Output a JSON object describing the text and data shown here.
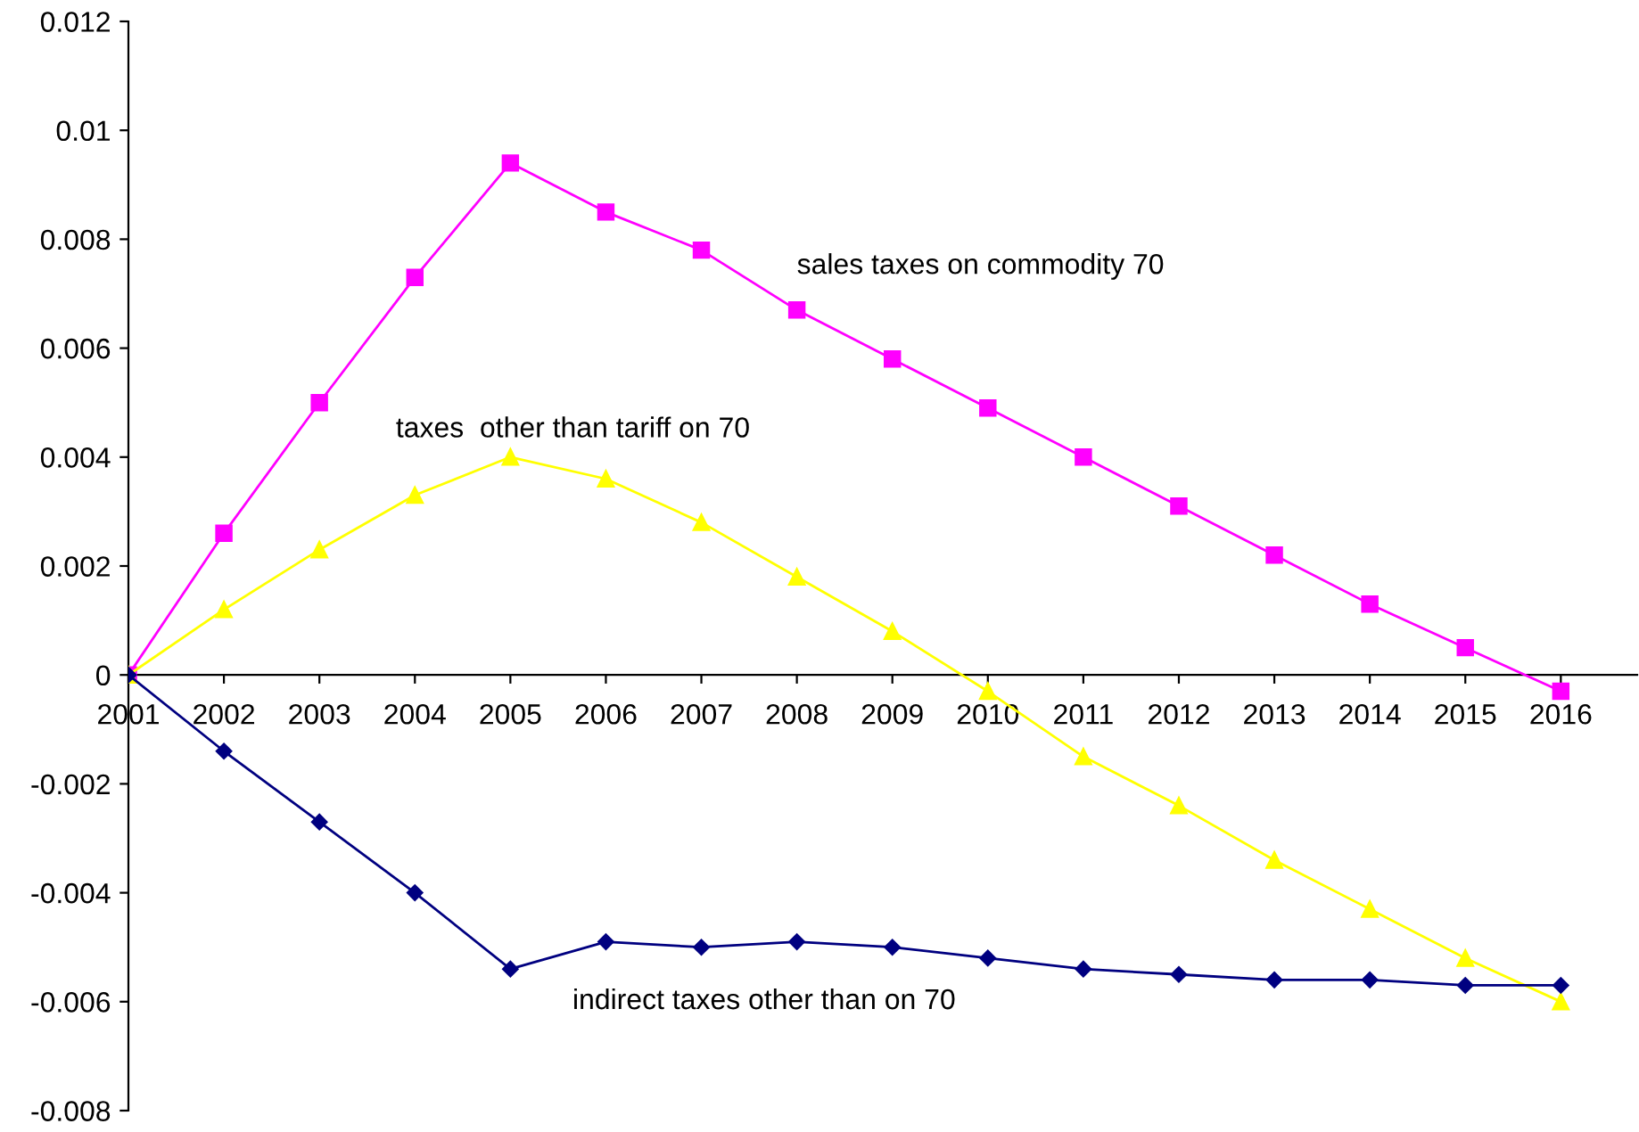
{
  "chart_data": {
    "type": "line",
    "categories": [
      "2001",
      "2002",
      "2003",
      "2004",
      "2005",
      "2006",
      "2007",
      "2008",
      "2009",
      "2010",
      "2011",
      "2012",
      "2013",
      "2014",
      "2015",
      "2016"
    ],
    "series": [
      {
        "name": "sales taxes on commodity 70",
        "color": "#ff00ff",
        "marker": "square",
        "values": [
          0,
          0.0026,
          0.005,
          0.0073,
          0.0094,
          0.0085,
          0.0078,
          0.0067,
          0.0058,
          0.0049,
          0.004,
          0.0031,
          0.0022,
          0.0013,
          0.0005,
          -0.0003
        ]
      },
      {
        "name": "taxes  other than tariff on 70",
        "color": "#ffff00",
        "marker": "triangle",
        "values": [
          0,
          0.0012,
          0.0023,
          0.0033,
          0.004,
          0.0036,
          0.0028,
          0.0018,
          0.0008,
          -0.0003,
          -0.0015,
          -0.0024,
          -0.0034,
          -0.0043,
          -0.0052,
          -0.006
        ]
      },
      {
        "name": "indirect taxes other than on 70",
        "color": "#000080",
        "marker": "diamond",
        "values": [
          0,
          -0.0014,
          -0.0027,
          -0.004,
          -0.0054,
          -0.0049,
          -0.005,
          -0.0049,
          -0.005,
          -0.0052,
          -0.0054,
          -0.0055,
          -0.0056,
          -0.0056,
          -0.0057,
          -0.0057
        ]
      }
    ],
    "ylim": [
      -0.008,
      0.012
    ],
    "yticks": [
      {
        "value": -0.008,
        "label": "-0.008"
      },
      {
        "value": -0.006,
        "label": "-0.006"
      },
      {
        "value": -0.004,
        "label": "-0.004"
      },
      {
        "value": -0.002,
        "label": "-0.002"
      },
      {
        "value": 0,
        "label": "0"
      },
      {
        "value": 0.002,
        "label": "0.002"
      },
      {
        "value": 0.004,
        "label": "0.004"
      },
      {
        "value": 0.006,
        "label": "0.006"
      },
      {
        "value": 0.008,
        "label": "0.008"
      },
      {
        "value": 0.01,
        "label": "0.01"
      },
      {
        "value": 0.012,
        "label": "0.012"
      }
    ],
    "grid": false,
    "legend": false
  }
}
